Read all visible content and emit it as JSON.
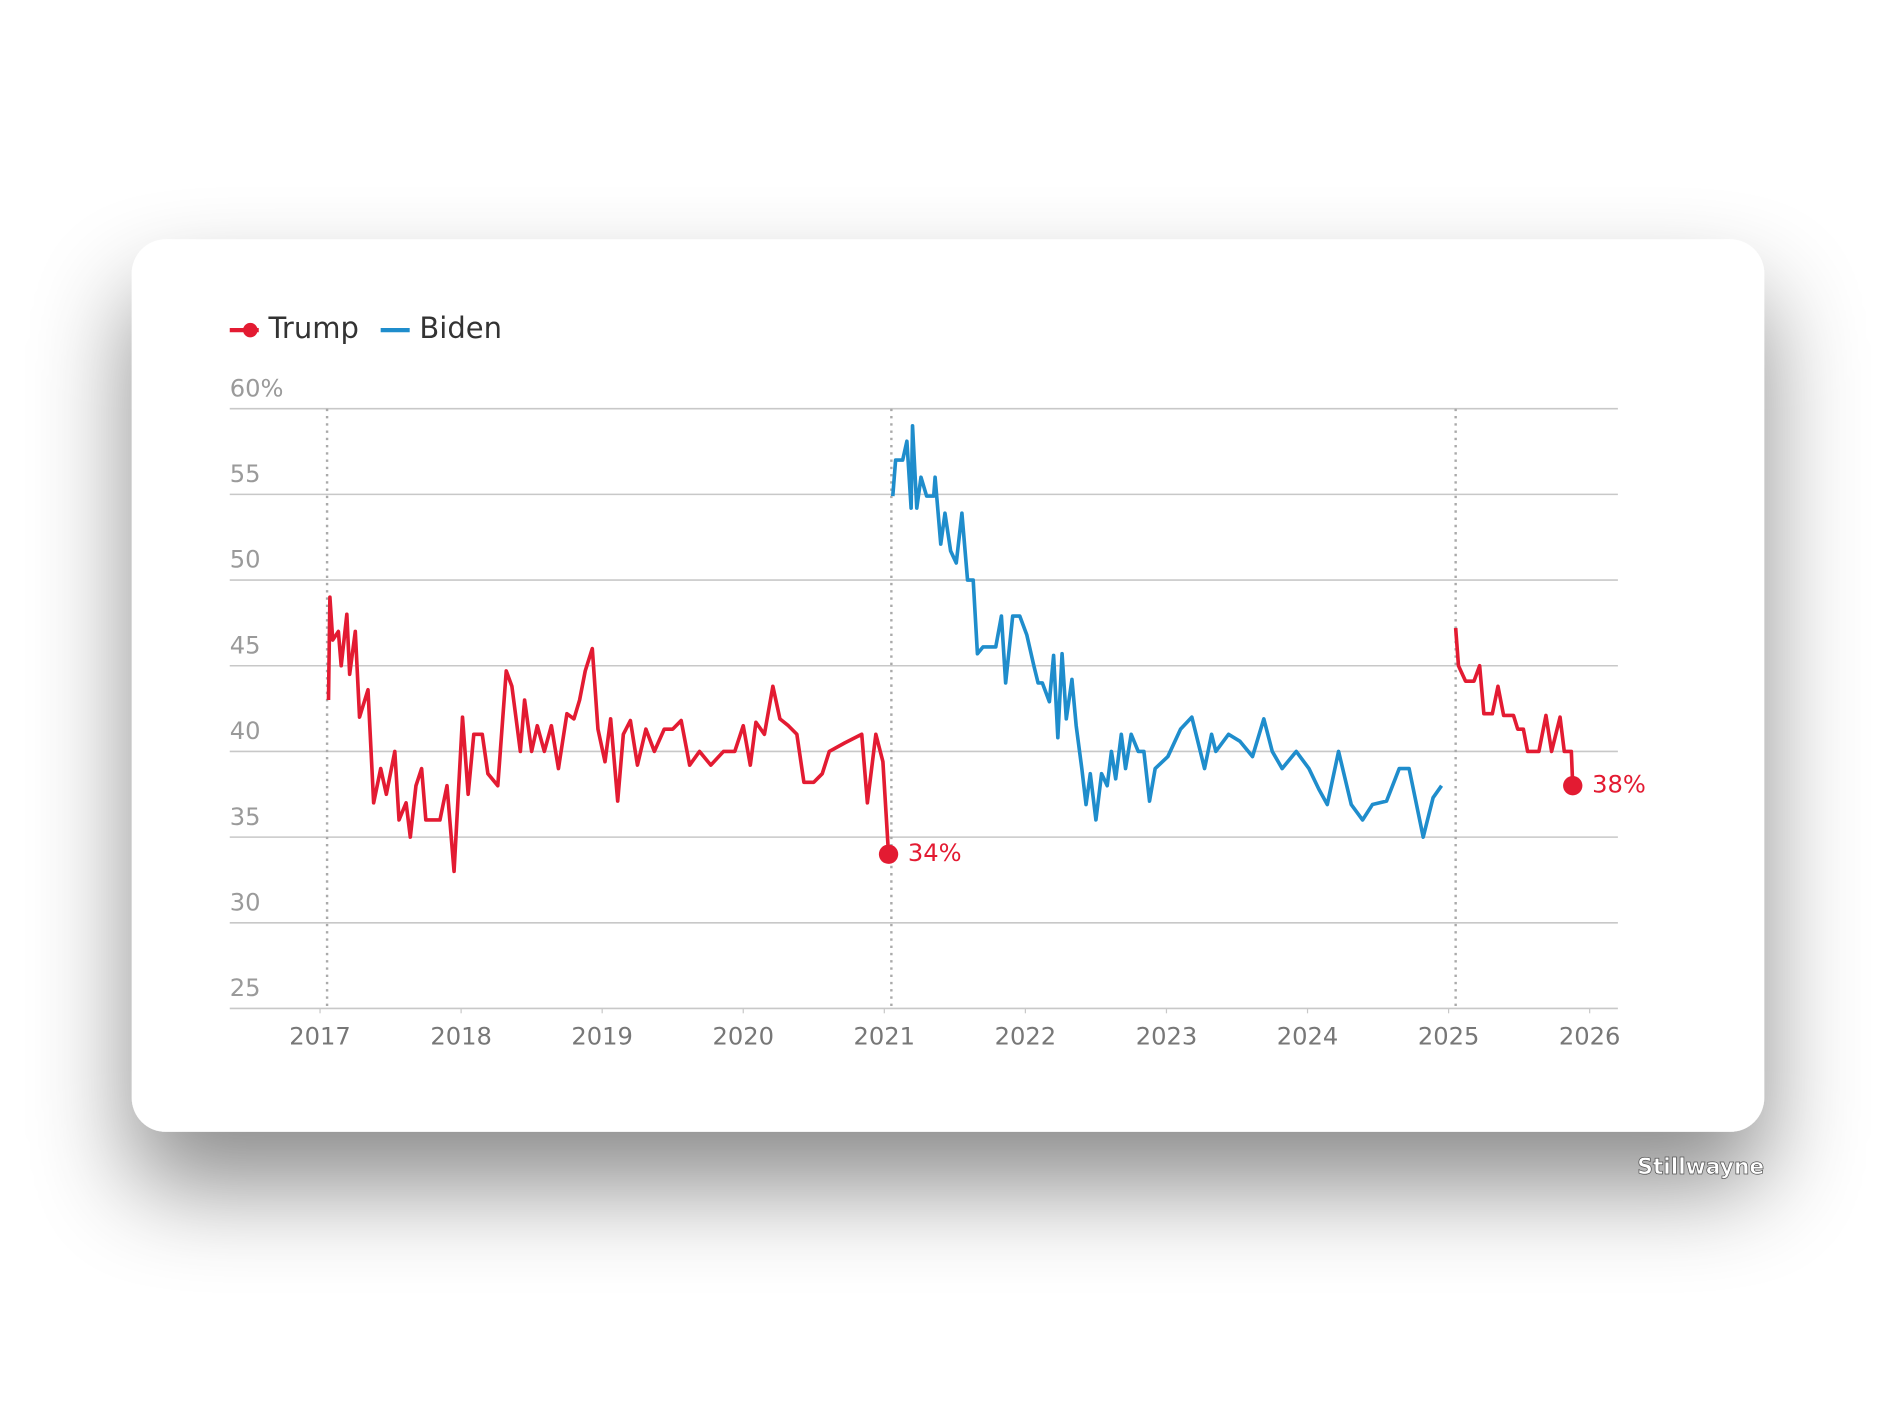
{
  "chart_data": {
    "type": "line",
    "watermark": "Stillwayne",
    "xlim": [
      2016.36,
      2026.2
    ],
    "xticks": [
      2017,
      2018,
      2019,
      2020,
      2021,
      2022,
      2023,
      2024,
      2025,
      2026
    ],
    "ylim": [
      25,
      60
    ],
    "yticks": [
      25,
      30,
      35,
      40,
      45,
      {
        "value": 60,
        "label": "60%"
      },
      50,
      55
    ],
    "grid": true,
    "reference_lines": [
      2017.05,
      2021.05,
      2025.05
    ],
    "legend": "top-left",
    "series": [
      {
        "name": "Trump",
        "color": "#e31b32",
        "marker": true,
        "x": [
          2017.06,
          2017.07,
          2017.09,
          2017.13,
          2017.15,
          2017.19,
          2017.21,
          2017.25,
          2017.28,
          2017.34,
          2017.38,
          2017.43,
          2017.47,
          2017.53,
          2017.56,
          2017.61,
          2017.64,
          2017.68,
          2017.72,
          2017.75,
          2017.85,
          2017.9,
          2017.95,
          2018.01,
          2018.05,
          2018.09,
          2018.15,
          2018.19,
          2018.26,
          2018.32,
          2018.36,
          2018.42,
          2018.45,
          2018.5,
          2018.54,
          2018.59,
          2018.64,
          2018.69,
          2018.75,
          2018.8,
          2018.84,
          2018.88,
          2018.93,
          2018.97,
          2019.02,
          2019.06,
          2019.11,
          2019.15,
          2019.2,
          2019.25,
          2019.31,
          2019.37,
          2019.44,
          2019.5,
          2019.56,
          2019.62,
          2019.69,
          2019.77,
          2019.86,
          2019.94,
          2020.0,
          2020.05,
          2020.09,
          2020.15,
          2020.21,
          2020.26,
          2020.32,
          2020.38,
          2020.43,
          2020.5,
          2020.56,
          2020.61,
          2020.72,
          2020.84,
          2020.88,
          2020.94,
          2020.99,
          2021.03,
          null,
          2025.05,
          2025.07,
          2025.12,
          2025.18,
          2025.22,
          2025.25,
          2025.31,
          2025.35,
          2025.39,
          2025.46,
          2025.49,
          2025.53,
          2025.56,
          2025.64,
          2025.69,
          2025.73,
          2025.79,
          2025.82,
          2025.87,
          2025.88
        ],
        "values": [
          43,
          49,
          46.5,
          47,
          45,
          48,
          44.5,
          47,
          42,
          43.6,
          37,
          39,
          37.5,
          40,
          36,
          37,
          35,
          38,
          39,
          36,
          36,
          38,
          33,
          42,
          37.5,
          41,
          41,
          38.7,
          38,
          44.7,
          43.8,
          40,
          43,
          40,
          41.5,
          40,
          41.5,
          39,
          42.2,
          41.9,
          43,
          44.7,
          46,
          41.3,
          39.4,
          41.9,
          37.1,
          41,
          41.8,
          39.2,
          41.3,
          40,
          41.3,
          41.3,
          41.8,
          39.2,
          40,
          39.2,
          40,
          40,
          41.5,
          39.2,
          41.7,
          41,
          43.8,
          41.9,
          41.5,
          41,
          38.2,
          38.2,
          38.7,
          40,
          40.5,
          41,
          37,
          41,
          39.4,
          34,
          null,
          47.2,
          45,
          44.1,
          44.1,
          45,
          42.2,
          42.2,
          43.8,
          42.1,
          42.1,
          41.3,
          41.3,
          40,
          40,
          42.1,
          40,
          42,
          40,
          40,
          38
        ],
        "value_labels": [
          null,
          null,
          null,
          null,
          null,
          null,
          null,
          null,
          null,
          null,
          null,
          null,
          null,
          null,
          null,
          null,
          null,
          null,
          null,
          null,
          null,
          null,
          null,
          null,
          null,
          null,
          null,
          null,
          null,
          null,
          null,
          null,
          null,
          null,
          null,
          null,
          null,
          null,
          null,
          null,
          null,
          null,
          null,
          null,
          null,
          null,
          null,
          null,
          null,
          null,
          null,
          null,
          null,
          null,
          null,
          null,
          null,
          null,
          null,
          null,
          null,
          null,
          null,
          null,
          null,
          null,
          null,
          null,
          null,
          null,
          null,
          null,
          null,
          null,
          null,
          null,
          null,
          "34%",
          null,
          null,
          null,
          null,
          null,
          null,
          null,
          null,
          null,
          null,
          null,
          null,
          null,
          null,
          null,
          null,
          null,
          null,
          null,
          null,
          "38%"
        ]
      },
      {
        "name": "Biden",
        "color": "#1f8dcc",
        "marker": false,
        "x": [
          2021.06,
          2021.08,
          2021.13,
          2021.16,
          2021.19,
          2021.2,
          2021.23,
          2021.26,
          2021.3,
          2021.35,
          2021.36,
          2021.4,
          2021.43,
          2021.47,
          2021.51,
          2021.55,
          2021.59,
          2021.63,
          2021.66,
          2021.7,
          2021.79,
          2021.83,
          2021.86,
          2021.91,
          2021.96,
          2022.01,
          2022.06,
          2022.09,
          2022.12,
          2022.17,
          2022.2,
          2022.23,
          2022.26,
          2022.29,
          2022.33,
          2022.36,
          2022.4,
          2022.43,
          2022.46,
          2022.5,
          2022.54,
          2022.58,
          2022.61,
          2022.64,
          2022.68,
          2022.71,
          2022.75,
          2022.8,
          2022.84,
          2022.88,
          2022.92,
          2023.01,
          2023.1,
          2023.18,
          2023.27,
          2023.32,
          2023.35,
          2023.44,
          2023.52,
          2023.61,
          2023.69,
          2023.75,
          2023.82,
          2023.92,
          2024.01,
          2024.08,
          2024.14,
          2024.22,
          2024.31,
          2024.39,
          2024.46,
          2024.56,
          2024.65,
          2024.72,
          2024.82,
          2024.89,
          2024.95
        ],
        "values": [
          54.9,
          57,
          57,
          58.1,
          54.2,
          59,
          54.2,
          56,
          54.9,
          54.9,
          56,
          52.1,
          53.9,
          51.7,
          51,
          53.9,
          50,
          50,
          45.7,
          46.1,
          46.1,
          47.9,
          44,
          47.9,
          47.9,
          46.8,
          45,
          44,
          44,
          42.9,
          45.6,
          40.8,
          45.7,
          41.9,
          44.2,
          41.5,
          39,
          36.9,
          38.7,
          36,
          38.7,
          38,
          40,
          38.4,
          41,
          39,
          41,
          40,
          40,
          37.1,
          39,
          39.7,
          41.3,
          42,
          39,
          41,
          40,
          41,
          40.6,
          39.7,
          41.9,
          40,
          39,
          40,
          39,
          37.8,
          36.9,
          40,
          36.9,
          36,
          36.9,
          37.1,
          39,
          39,
          35,
          37.3,
          38
        ]
      }
    ]
  }
}
